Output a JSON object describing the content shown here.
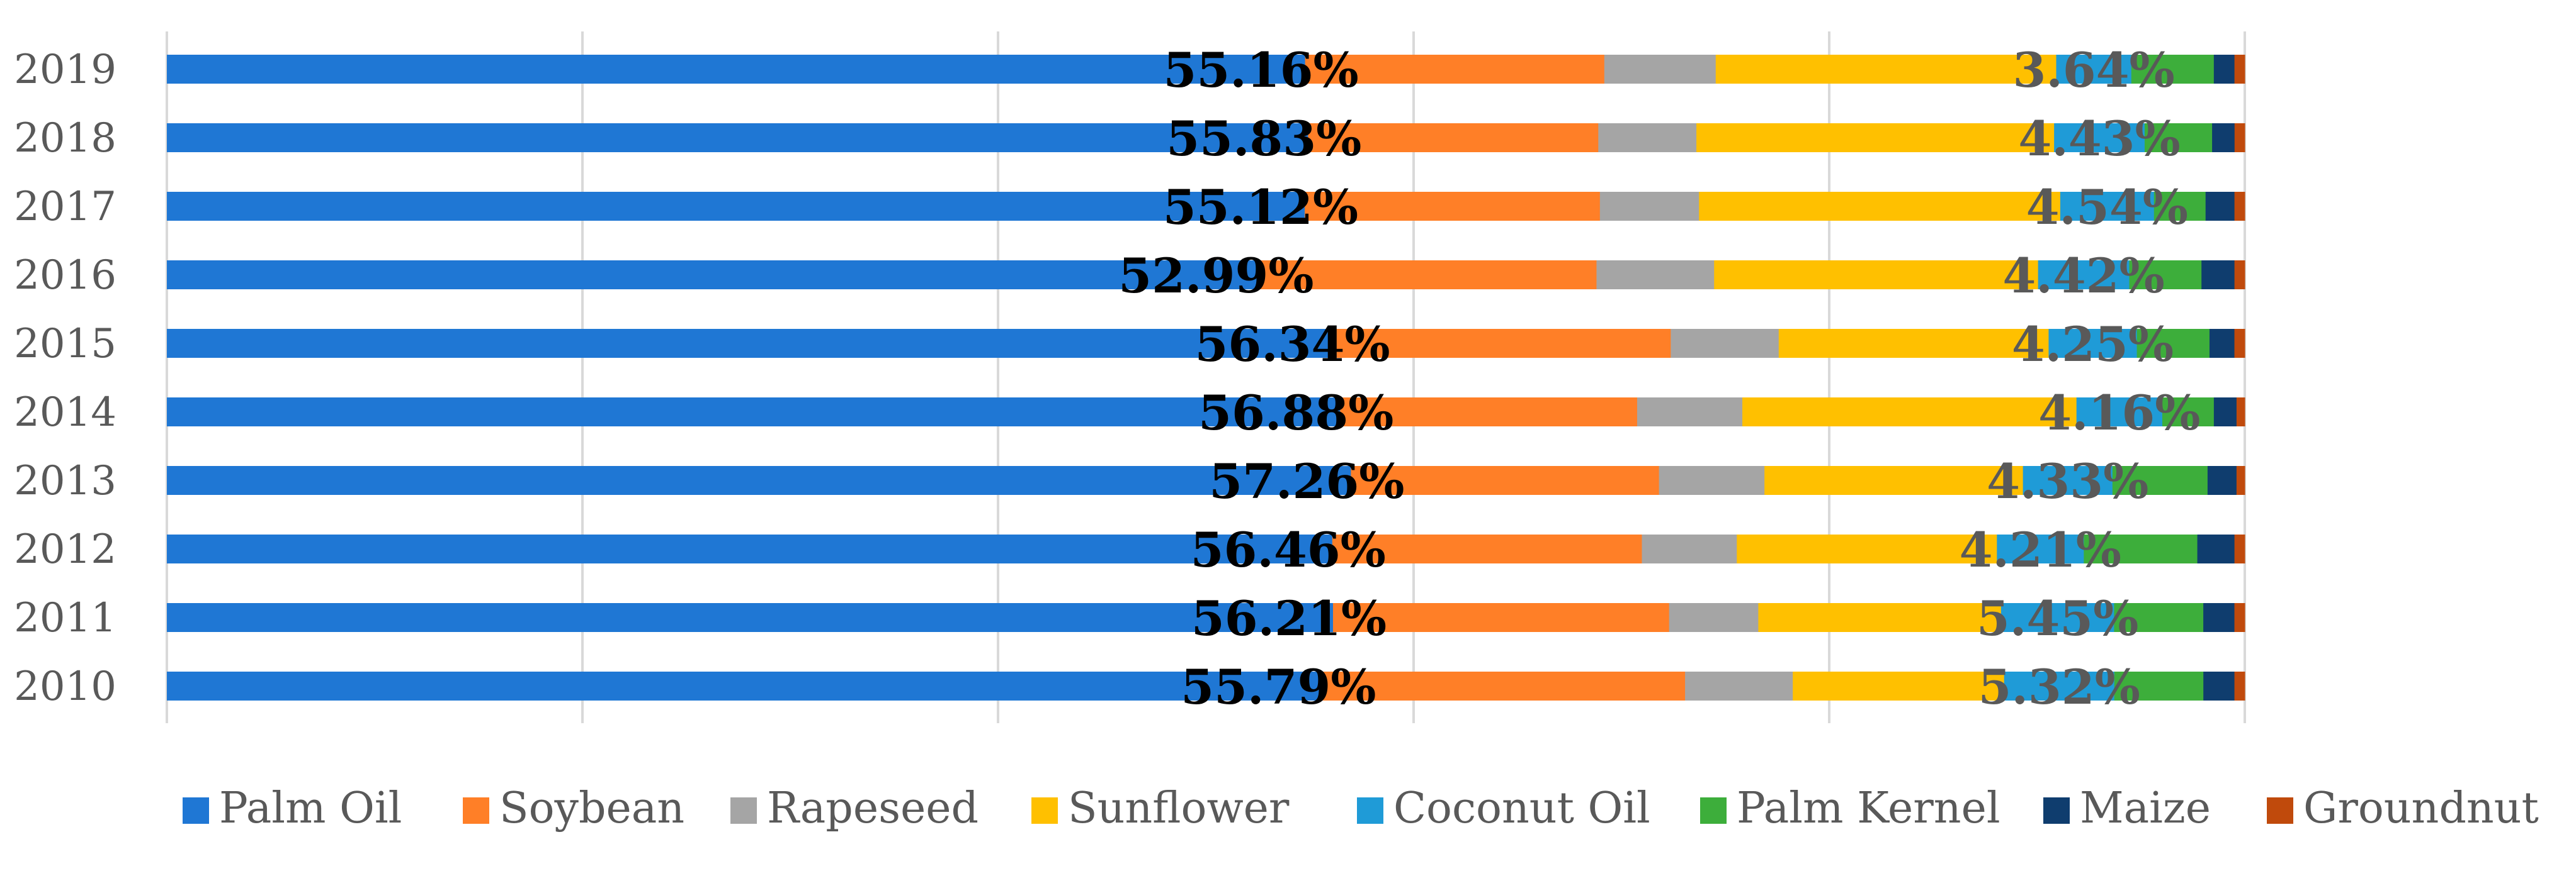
{
  "chart_data": {
    "type": "bar",
    "orientation": "horizontal",
    "stacked": true,
    "normalized": true,
    "title": "",
    "xlabel": "",
    "ylabel": "",
    "xlim": [
      0,
      1
    ],
    "grid": true,
    "legend_position": "bottom",
    "categories": [
      "2019",
      "2018",
      "2017",
      "2016",
      "2015",
      "2014",
      "2013",
      "2012",
      "2011",
      "2010"
    ],
    "series": [
      {
        "name": "Palm Oil",
        "color": "#1F77D4",
        "values": [
          55.16,
          55.83,
          55.12,
          52.99,
          56.34,
          56.88,
          57.26,
          56.46,
          56.21,
          55.79
        ],
        "labels": [
          "55.16%",
          "55.83%",
          "55.12%",
          "52.99%",
          "56.34%",
          "56.88%",
          "57.26%",
          "56.46%",
          "56.21%",
          "55.79%"
        ],
        "label_color": "#000000"
      },
      {
        "name": "Soybean",
        "color": "#FF7F27",
        "values": [
          14.5,
          14.2,
          14.3,
          16.3,
          16.1,
          14.4,
          14.9,
          15.0,
          16.2,
          17.5
        ]
      },
      {
        "name": "Rapeseed",
        "color": "#A5A5A5",
        "values": [
          5.4,
          4.8,
          4.8,
          5.7,
          5.2,
          5.1,
          5.1,
          4.6,
          4.3,
          5.2
        ]
      },
      {
        "name": "Sunflower",
        "color": "#FFC000",
        "values": [
          16.5,
          17.5,
          17.5,
          15.7,
          13.0,
          16.2,
          12.5,
          12.6,
          11.7,
          10.2
        ]
      },
      {
        "name": "Coconut Oil",
        "color": "#1F9BD7",
        "values": [
          3.64,
          4.43,
          4.54,
          4.42,
          4.25,
          4.16,
          4.33,
          4.21,
          5.45,
          5.32
        ],
        "labels": [
          "3.64%",
          "4.43%",
          "4.54%",
          "4.42%",
          "4.25%",
          "4.16%",
          "4.33%",
          "4.21%",
          "5.45%",
          "5.32%"
        ],
        "label_color": "#595959"
      },
      {
        "name": "Palm Kernel",
        "color": "#3DAE3B",
        "values": [
          4.0,
          3.3,
          2.5,
          3.5,
          3.5,
          2.5,
          4.6,
          5.5,
          4.3,
          4.3
        ]
      },
      {
        "name": "Maize",
        "color": "#0F3D6E",
        "values": [
          1.0,
          1.1,
          1.4,
          1.6,
          1.2,
          1.1,
          1.4,
          1.8,
          1.5,
          1.5
        ]
      },
      {
        "name": "Groundnut",
        "color": "#C04A0C",
        "values": [
          0.5,
          0.5,
          0.5,
          0.5,
          0.5,
          0.4,
          0.4,
          0.5,
          0.5,
          0.5
        ]
      }
    ]
  }
}
